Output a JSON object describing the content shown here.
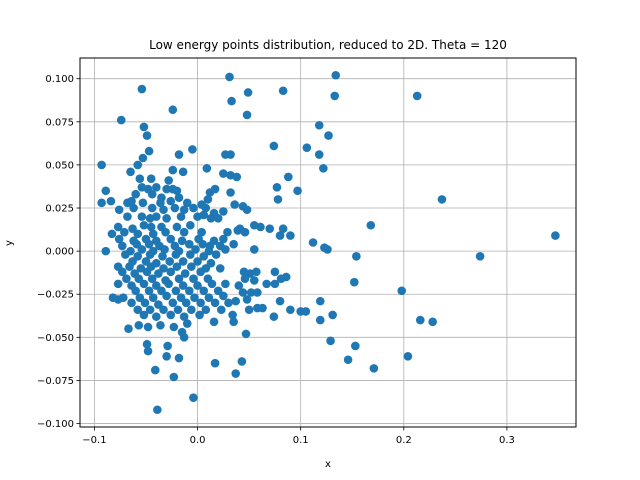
{
  "chart_data": {
    "type": "scatter",
    "title": "Low energy points distribution, reduced to 2D. Theta = 120",
    "xlabel": "x",
    "ylabel": "y",
    "xlim": [
      -0.114,
      0.367
    ],
    "ylim": [
      -0.102,
      0.112
    ],
    "x_ticks": [
      -0.1,
      0.0,
      0.1,
      0.2,
      0.3
    ],
    "x_tick_labels": [
      "−0.1",
      "0.0",
      "0.1",
      "0.2",
      "0.3"
    ],
    "y_ticks": [
      -0.1,
      -0.075,
      -0.05,
      -0.025,
      0.0,
      0.025,
      0.05,
      0.075,
      0.1
    ],
    "y_tick_labels": [
      "−0.100",
      "−0.075",
      "−0.050",
      "−0.025",
      "0.000",
      "0.025",
      "0.050",
      "0.075",
      "0.100"
    ],
    "grid": true,
    "marker_color": "#1f77b4",
    "series": [
      {
        "points": [
          [
            0.031,
            0.101
          ],
          [
            0.134,
            0.102
          ],
          [
            0.083,
            0.093
          ],
          [
            0.049,
            0.092
          ],
          [
            -0.054,
            0.094
          ],
          [
            0.213,
            0.09
          ],
          [
            0.133,
            0.09
          ],
          [
            0.033,
            0.087
          ],
          [
            -0.024,
            0.082
          ],
          [
            0.048,
            0.079
          ],
          [
            -0.074,
            0.076
          ],
          [
            0.118,
            0.073
          ],
          [
            -0.052,
            0.072
          ],
          [
            -0.049,
            0.067
          ],
          [
            0.127,
            0.067
          ],
          [
            0.106,
            0.06
          ],
          [
            0.074,
            0.061
          ],
          [
            -0.005,
            0.059
          ],
          [
            -0.047,
            0.058
          ],
          [
            -0.018,
            0.056
          ],
          [
            0.027,
            0.056
          ],
          [
            0.032,
            0.056
          ],
          [
            0.118,
            0.056
          ],
          [
            -0.053,
            0.054
          ],
          [
            -0.093,
            0.05
          ],
          [
            -0.058,
            0.05
          ],
          [
            0.009,
            0.048
          ],
          [
            0.122,
            0.048
          ],
          [
            -0.065,
            0.046
          ],
          [
            -0.024,
            0.047
          ],
          [
            -0.014,
            0.046
          ],
          [
            0.025,
            0.045
          ],
          [
            0.032,
            0.044
          ],
          [
            0.038,
            0.043
          ],
          [
            0.088,
            0.043
          ],
          [
            -0.056,
            0.042
          ],
          [
            -0.045,
            0.042
          ],
          [
            -0.028,
            0.041
          ],
          [
            0.077,
            0.037
          ],
          [
            0.097,
            0.035
          ],
          [
            -0.089,
            0.035
          ],
          [
            -0.054,
            0.037
          ],
          [
            -0.048,
            0.036
          ],
          [
            -0.04,
            0.037
          ],
          [
            -0.03,
            0.036
          ],
          [
            -0.024,
            0.036
          ],
          [
            -0.02,
            0.035
          ],
          [
            0.012,
            0.034
          ],
          [
            0.017,
            0.036
          ],
          [
            0.032,
            0.034
          ],
          [
            -0.06,
            0.033
          ],
          [
            -0.044,
            0.033
          ],
          [
            -0.035,
            0.031
          ],
          [
            -0.018,
            0.031
          ],
          [
            0.01,
            0.03
          ],
          [
            0.237,
            0.03
          ],
          [
            -0.093,
            0.028
          ],
          [
            -0.084,
            0.029
          ],
          [
            -0.068,
            0.028
          ],
          [
            -0.064,
            0.029
          ],
          [
            -0.053,
            0.028
          ],
          [
            -0.036,
            0.028
          ],
          [
            -0.026,
            0.029
          ],
          [
            -0.01,
            0.028
          ],
          [
            0.004,
            0.027
          ],
          [
            0.036,
            0.027
          ],
          [
            0.078,
            0.03
          ],
          [
            -0.076,
            0.024
          ],
          [
            -0.062,
            0.025
          ],
          [
            -0.044,
            0.025
          ],
          [
            -0.033,
            0.024
          ],
          [
            -0.022,
            0.025
          ],
          [
            -0.013,
            0.024
          ],
          [
            -0.004,
            0.025
          ],
          [
            0.008,
            0.025
          ],
          [
            0.016,
            0.022
          ],
          [
            0.025,
            0.023
          ],
          [
            0.044,
            0.026
          ],
          [
            0.048,
            0.024
          ],
          [
            -0.068,
            0.02
          ],
          [
            -0.054,
            0.02
          ],
          [
            -0.046,
            0.019
          ],
          [
            -0.04,
            0.02
          ],
          [
            -0.03,
            0.019
          ],
          [
            -0.016,
            0.02
          ],
          [
            0.0,
            0.02
          ],
          [
            0.006,
            0.021
          ],
          [
            0.013,
            0.019
          ],
          [
            0.02,
            0.019
          ],
          [
            0.168,
            0.015
          ],
          [
            -0.077,
            0.014
          ],
          [
            -0.063,
            0.013
          ],
          [
            -0.052,
            0.015
          ],
          [
            -0.045,
            0.014
          ],
          [
            -0.035,
            0.014
          ],
          [
            -0.02,
            0.014
          ],
          [
            -0.007,
            0.015
          ],
          [
            0.041,
            0.013
          ],
          [
            0.055,
            0.015
          ],
          [
            0.061,
            0.014
          ],
          [
            0.07,
            0.013
          ],
          [
            0.083,
            0.013
          ],
          [
            -0.083,
            0.01
          ],
          [
            -0.071,
            0.011
          ],
          [
            -0.058,
            0.01
          ],
          [
            -0.043,
            0.01
          ],
          [
            -0.031,
            0.011
          ],
          [
            -0.013,
            0.011
          ],
          [
            0.004,
            0.011
          ],
          [
            0.029,
            0.011
          ],
          [
            0.039,
            0.012
          ],
          [
            0.046,
            0.011
          ],
          [
            0.08,
            0.009
          ],
          [
            0.09,
            0.009
          ],
          [
            0.347,
            0.009
          ],
          [
            -0.076,
            0.007
          ],
          [
            -0.062,
            0.006
          ],
          [
            -0.05,
            0.007
          ],
          [
            -0.04,
            0.006
          ],
          [
            -0.026,
            0.007
          ],
          [
            -0.015,
            0.006
          ],
          [
            0.001,
            0.007
          ],
          [
            0.016,
            0.006
          ],
          [
            0.025,
            0.007
          ],
          [
            0.112,
            0.005
          ],
          [
            -0.073,
            0.003
          ],
          [
            -0.059,
            0.004
          ],
          [
            -0.047,
            0.004
          ],
          [
            -0.037,
            0.003
          ],
          [
            -0.022,
            0.003
          ],
          [
            -0.008,
            0.004
          ],
          [
            0.005,
            0.004
          ],
          [
            0.012,
            0.003
          ],
          [
            0.022,
            0.003
          ],
          [
            0.035,
            0.004
          ],
          [
            0.123,
            0.002
          ],
          [
            -0.089,
            0.0
          ],
          [
            -0.065,
            0.0
          ],
          [
            -0.054,
            0.001
          ],
          [
            -0.043,
            0.0
          ],
          [
            -0.032,
            0.001
          ],
          [
            -0.018,
            0.0
          ],
          [
            -0.002,
            0.001
          ],
          [
            0.011,
            0.0
          ],
          [
            0.027,
            0.001
          ],
          [
            0.055,
            0.001
          ],
          [
            0.126,
            0.001
          ],
          [
            0.154,
            -0.003
          ],
          [
            0.274,
            -0.003
          ],
          [
            -0.07,
            -0.002
          ],
          [
            -0.058,
            -0.003
          ],
          [
            -0.046,
            -0.002
          ],
          [
            -0.034,
            -0.003
          ],
          [
            -0.021,
            -0.002
          ],
          [
            -0.007,
            -0.002
          ],
          [
            0.006,
            -0.003
          ],
          [
            0.018,
            -0.002
          ],
          [
            -0.063,
            -0.006
          ],
          [
            -0.05,
            -0.006
          ],
          [
            -0.04,
            -0.007
          ],
          [
            -0.027,
            -0.006
          ],
          [
            -0.014,
            -0.006
          ],
          [
            0.0,
            -0.006
          ],
          [
            0.013,
            -0.007
          ],
          [
            -0.077,
            -0.009
          ],
          [
            -0.066,
            -0.009
          ],
          [
            -0.055,
            -0.01
          ],
          [
            -0.045,
            -0.009
          ],
          [
            -0.033,
            -0.01
          ],
          [
            -0.02,
            -0.009
          ],
          [
            -0.006,
            -0.009
          ],
          [
            0.008,
            -0.01
          ],
          [
            0.022,
            -0.01
          ],
          [
            -0.073,
            -0.012
          ],
          [
            -0.061,
            -0.013
          ],
          [
            -0.049,
            -0.012
          ],
          [
            -0.038,
            -0.013
          ],
          [
            -0.026,
            -0.012
          ],
          [
            -0.012,
            -0.013
          ],
          [
            0.003,
            -0.012
          ],
          [
            0.045,
            -0.012
          ],
          [
            0.051,
            -0.013
          ],
          [
            0.057,
            -0.012
          ],
          [
            0.075,
            -0.012
          ],
          [
            0.086,
            -0.015
          ],
          [
            -0.069,
            -0.016
          ],
          [
            -0.057,
            -0.016
          ],
          [
            -0.044,
            -0.016
          ],
          [
            -0.031,
            -0.017
          ],
          [
            -0.018,
            -0.016
          ],
          [
            -0.004,
            -0.016
          ],
          [
            0.01,
            -0.016
          ],
          [
            0.046,
            -0.016
          ],
          [
            0.055,
            -0.017
          ],
          [
            0.081,
            -0.016
          ],
          [
            0.152,
            -0.018
          ],
          [
            -0.077,
            -0.019
          ],
          [
            -0.064,
            -0.02
          ],
          [
            -0.052,
            -0.019
          ],
          [
            -0.04,
            -0.02
          ],
          [
            -0.028,
            -0.019
          ],
          [
            -0.014,
            -0.02
          ],
          [
            0.0,
            -0.02
          ],
          [
            0.014,
            -0.019
          ],
          [
            0.027,
            -0.019
          ],
          [
            0.04,
            -0.02
          ],
          [
            0.067,
            -0.019
          ],
          [
            0.075,
            -0.019
          ],
          [
            -0.06,
            -0.023
          ],
          [
            -0.047,
            -0.023
          ],
          [
            -0.035,
            -0.023
          ],
          [
            -0.021,
            -0.023
          ],
          [
            -0.008,
            -0.023
          ],
          [
            0.006,
            -0.023
          ],
          [
            0.02,
            -0.023
          ],
          [
            0.044,
            -0.024
          ],
          [
            0.052,
            -0.024
          ],
          [
            0.058,
            -0.024
          ],
          [
            0.198,
            -0.023
          ],
          [
            -0.082,
            -0.027
          ],
          [
            -0.072,
            -0.027
          ],
          [
            -0.056,
            -0.027
          ],
          [
            -0.043,
            -0.027
          ],
          [
            -0.03,
            -0.026
          ],
          [
            -0.016,
            -0.027
          ],
          [
            -0.003,
            -0.027
          ],
          [
            0.011,
            -0.027
          ],
          [
            0.025,
            -0.026
          ],
          [
            0.048,
            -0.028
          ],
          [
            -0.077,
            -0.028
          ],
          [
            -0.064,
            -0.03
          ],
          [
            -0.051,
            -0.03
          ],
          [
            -0.038,
            -0.031
          ],
          [
            -0.024,
            -0.03
          ],
          [
            -0.011,
            -0.03
          ],
          [
            0.003,
            -0.03
          ],
          [
            0.017,
            -0.03
          ],
          [
            0.03,
            -0.03
          ],
          [
            0.037,
            -0.029
          ],
          [
            0.08,
            -0.029
          ],
          [
            0.119,
            -0.029
          ],
          [
            -0.058,
            -0.034
          ],
          [
            -0.046,
            -0.034
          ],
          [
            -0.033,
            -0.034
          ],
          [
            -0.019,
            -0.034
          ],
          [
            -0.006,
            -0.034
          ],
          [
            0.008,
            -0.034
          ],
          [
            0.023,
            -0.034
          ],
          [
            0.05,
            -0.034
          ],
          [
            0.058,
            -0.033
          ],
          [
            0.063,
            -0.033
          ],
          [
            0.09,
            -0.034
          ],
          [
            0.1,
            -0.035
          ],
          [
            0.105,
            -0.035
          ],
          [
            -0.052,
            -0.037
          ],
          [
            -0.04,
            -0.038
          ],
          [
            -0.026,
            -0.037
          ],
          [
            -0.013,
            -0.038
          ],
          [
            0.002,
            -0.037
          ],
          [
            0.034,
            -0.037
          ],
          [
            0.074,
            -0.038
          ],
          [
            0.119,
            -0.04
          ],
          [
            0.131,
            -0.037
          ],
          [
            0.216,
            -0.04
          ],
          [
            0.228,
            -0.041
          ],
          [
            -0.067,
            -0.045
          ],
          [
            -0.057,
            -0.043
          ],
          [
            -0.048,
            -0.044
          ],
          [
            -0.036,
            -0.043
          ],
          [
            -0.023,
            -0.044
          ],
          [
            -0.01,
            -0.042
          ],
          [
            0.016,
            -0.041
          ],
          [
            0.035,
            -0.041
          ],
          [
            -0.015,
            -0.047
          ],
          [
            -0.013,
            -0.05
          ],
          [
            0.047,
            -0.048
          ],
          [
            0.129,
            -0.052
          ],
          [
            -0.049,
            -0.054
          ],
          [
            -0.029,
            -0.055
          ],
          [
            0.153,
            -0.055
          ],
          [
            -0.048,
            -0.058
          ],
          [
            -0.018,
            -0.062
          ],
          [
            -0.03,
            -0.061
          ],
          [
            0.204,
            -0.061
          ],
          [
            0.146,
            -0.063
          ],
          [
            0.017,
            -0.065
          ],
          [
            0.043,
            -0.064
          ],
          [
            -0.041,
            -0.069
          ],
          [
            0.037,
            -0.071
          ],
          [
            0.171,
            -0.068
          ],
          [
            -0.023,
            -0.073
          ],
          [
            -0.004,
            -0.085
          ],
          [
            -0.039,
            -0.092
          ]
        ]
      }
    ]
  }
}
